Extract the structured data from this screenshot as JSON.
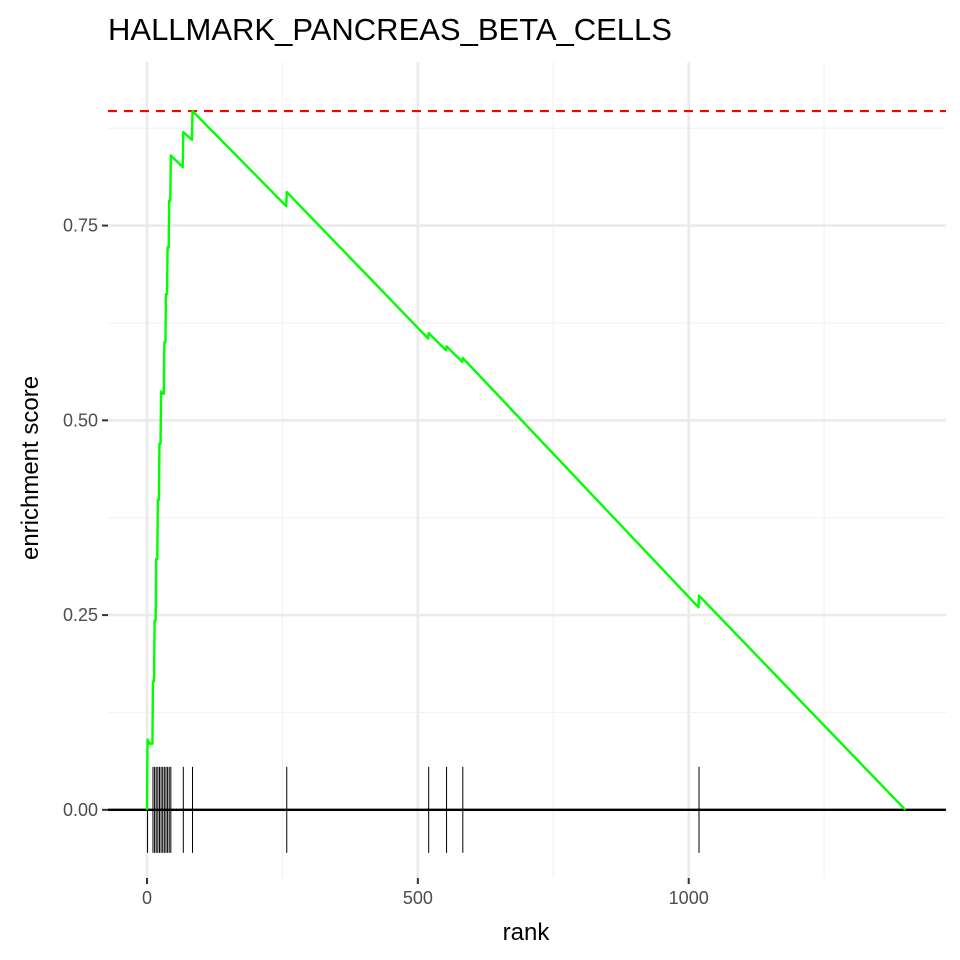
{
  "chart_data": {
    "type": "line",
    "title": "HALLMARK_PANCREAS_BETA_CELLS",
    "xlabel": "rank",
    "ylabel": "enrichment score",
    "xlim": [
      -72,
      1475
    ],
    "ylim": [
      -0.0875,
      0.96
    ],
    "x_ticks": [
      0,
      500,
      1000
    ],
    "x_tick_labels": [
      "0",
      "500",
      "1000"
    ],
    "y_ticks": [
      0,
      0.25,
      0.5,
      0.75
    ],
    "y_tick_labels": [
      "0.00",
      "0.25",
      "0.50",
      "0.75"
    ],
    "grid": true,
    "series": [
      {
        "color": "#00ff00",
        "x": [
          0,
          1,
          5,
          6,
          10,
          11,
          13,
          14,
          16,
          17,
          19,
          20,
          22,
          23,
          25,
          26,
          28,
          29,
          31,
          32,
          34,
          35,
          37,
          38,
          40,
          41,
          43,
          44,
          66,
          67,
          83,
          84,
          257,
          258,
          519,
          520,
          552,
          553,
          582,
          583,
          1018,
          1019,
          1400
        ],
        "y": [
          0,
          0.09,
          0.085,
          0.085,
          0.085,
          0.165,
          0.165,
          0.243,
          0.243,
          0.322,
          0.322,
          0.398,
          0.398,
          0.47,
          0.47,
          0.537,
          0.534,
          0.534,
          0.534,
          0.6,
          0.6,
          0.662,
          0.662,
          0.722,
          0.722,
          0.782,
          0.782,
          0.84,
          0.825,
          0.87,
          0.86,
          0.897,
          0.775,
          0.793,
          0.605,
          0.612,
          0.59,
          0.595,
          0.575,
          0.58,
          0.26,
          0.275,
          0
        ]
      }
    ],
    "hline": {
      "y": 0.897,
      "color": "#ff0000",
      "style": "dashed"
    },
    "zero_line": {
      "y": 0,
      "color": "#000000"
    },
    "rug_positions": [
      1,
      11,
      14,
      17,
      20,
      23,
      26,
      29,
      32,
      35,
      38,
      41,
      44,
      67,
      84,
      258,
      520,
      553,
      583,
      1019
    ]
  }
}
